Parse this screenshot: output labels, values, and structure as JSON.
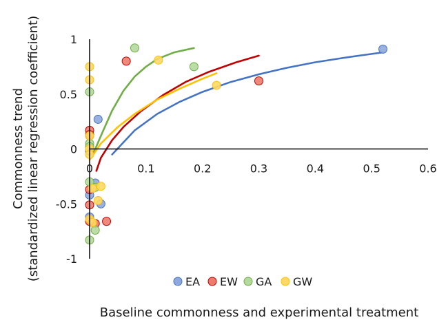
{
  "chart_data": {
    "type": "scatter",
    "title": "",
    "xlabel": "Baseline commonness and experimental treatment",
    "ylabel_lines": [
      "Commonness trend",
      "(standardized linear regression coefficient)"
    ],
    "xlim": [
      0,
      0.6
    ],
    "ylim": [
      -1,
      1
    ],
    "x_ticks": [
      0,
      0.1,
      0.2,
      0.3,
      0.4,
      0.5,
      0.6
    ],
    "x_tick_labels": [
      "0",
      "0.1",
      "0.2",
      "0.3",
      "0.4",
      "0.5",
      "0.6"
    ],
    "y_ticks": [
      1,
      0.5,
      0,
      -0.5,
      -1
    ],
    "y_tick_labels": [
      "1",
      "0.5",
      "0",
      "-0.5",
      "-1"
    ],
    "grid": false,
    "legend_position": "bottom",
    "series": [
      {
        "name": "EA",
        "color": "#4472c4",
        "fill": "#8fa9dc",
        "points": [
          [
            0.52,
            0.91
          ],
          [
            0.015,
            0.27
          ],
          [
            0.0,
            0.12
          ],
          [
            0.0,
            0.02
          ],
          [
            0.0,
            -0.02
          ],
          [
            0.01,
            -0.31
          ],
          [
            0.0,
            -0.42
          ],
          [
            0.02,
            -0.5
          ],
          [
            0.0,
            -0.62
          ],
          [
            0.005,
            -0.67
          ]
        ],
        "trend": [
          [
            0.04,
            -0.05
          ],
          [
            0.08,
            0.17
          ],
          [
            0.12,
            0.32
          ],
          [
            0.16,
            0.43
          ],
          [
            0.2,
            0.52
          ],
          [
            0.25,
            0.61
          ],
          [
            0.3,
            0.68
          ],
          [
            0.35,
            0.74
          ],
          [
            0.4,
            0.79
          ],
          [
            0.45,
            0.83
          ],
          [
            0.52,
            0.88
          ]
        ]
      },
      {
        "name": "EW",
        "color": "#c00000",
        "fill": "#ec7c6e",
        "points": [
          [
            0.3,
            0.62
          ],
          [
            0.065,
            0.8
          ],
          [
            0.0,
            0.17
          ],
          [
            0.0,
            0.13
          ],
          [
            0.0,
            -0.37
          ],
          [
            0.0,
            -0.51
          ],
          [
            0.03,
            -0.66
          ],
          [
            0.01,
            -0.68
          ],
          [
            0.0,
            -0.66
          ]
        ],
        "trend": [
          [
            0.012,
            -0.2
          ],
          [
            0.02,
            -0.08
          ],
          [
            0.04,
            0.08
          ],
          [
            0.06,
            0.2
          ],
          [
            0.09,
            0.34
          ],
          [
            0.13,
            0.49
          ],
          [
            0.17,
            0.61
          ],
          [
            0.21,
            0.7
          ],
          [
            0.26,
            0.79
          ],
          [
            0.3,
            0.85
          ]
        ]
      },
      {
        "name": "GA",
        "color": "#70ad47",
        "fill": "#b4d99d",
        "points": [
          [
            0.08,
            0.92
          ],
          [
            0.185,
            0.75
          ],
          [
            0.0,
            0.52
          ],
          [
            0.0,
            0.05
          ],
          [
            0.0,
            0.02
          ],
          [
            0.0,
            -0.3
          ],
          [
            0.01,
            -0.35
          ],
          [
            0.01,
            -0.74
          ],
          [
            0.0,
            -0.83
          ]
        ],
        "trend": [
          [
            0.005,
            -0.06
          ],
          [
            0.02,
            0.12
          ],
          [
            0.04,
            0.35
          ],
          [
            0.06,
            0.53
          ],
          [
            0.08,
            0.66
          ],
          [
            0.1,
            0.75
          ],
          [
            0.12,
            0.82
          ],
          [
            0.15,
            0.88
          ],
          [
            0.185,
            0.92
          ]
        ]
      },
      {
        "name": "GW",
        "color": "#ffc000",
        "fill": "#ffd966",
        "points": [
          [
            0.0,
            0.75
          ],
          [
            0.0,
            0.63
          ],
          [
            0.122,
            0.81
          ],
          [
            0.225,
            0.58
          ],
          [
            0.0,
            0.12
          ],
          [
            0.0,
            0.0
          ],
          [
            0.0,
            -0.05
          ],
          [
            0.02,
            -0.34
          ],
          [
            0.005,
            -0.36
          ],
          [
            0.015,
            -0.47
          ],
          [
            0.0,
            -0.64
          ],
          [
            0.005,
            -0.67
          ]
        ],
        "trend": [
          [
            0.0,
            -0.1
          ],
          [
            0.02,
            0.05
          ],
          [
            0.05,
            0.2
          ],
          [
            0.08,
            0.32
          ],
          [
            0.12,
            0.45
          ],
          [
            0.16,
            0.55
          ],
          [
            0.2,
            0.64
          ],
          [
            0.225,
            0.69
          ]
        ]
      }
    ]
  }
}
